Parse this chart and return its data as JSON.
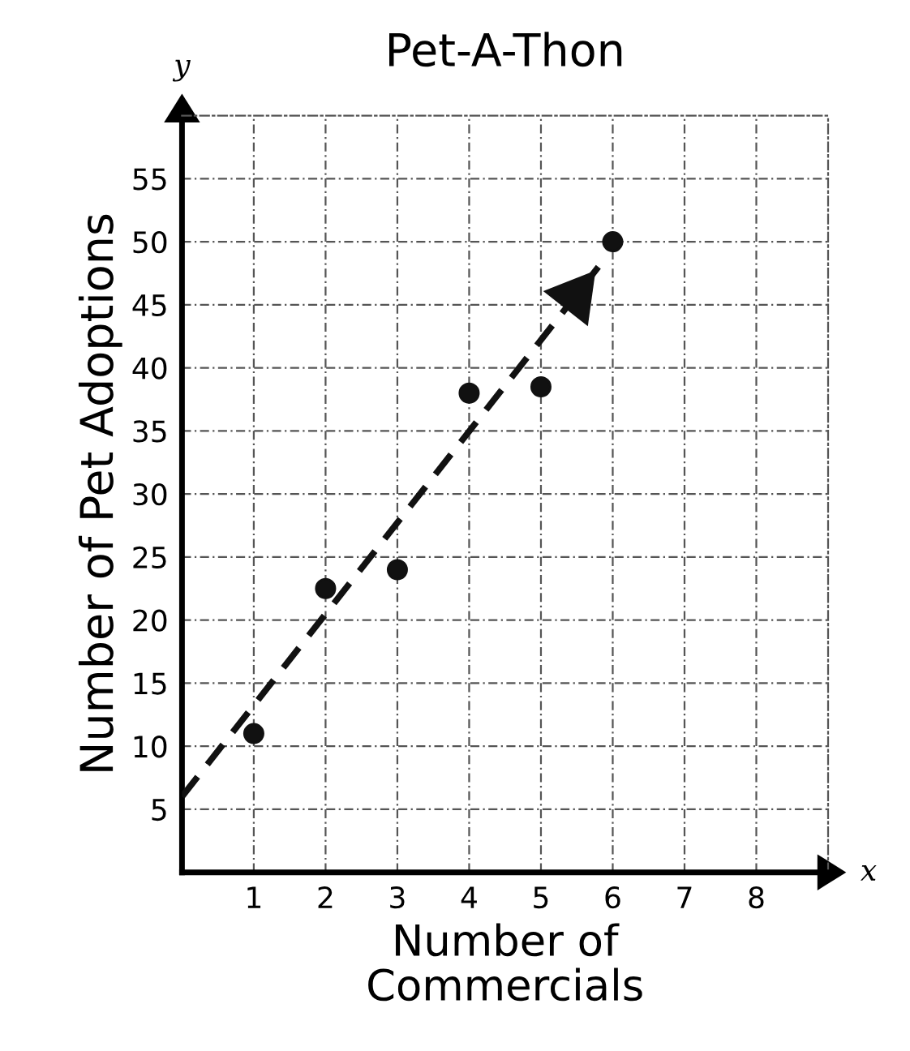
{
  "chart_data": {
    "type": "scatter",
    "title": "Pet-A-Thon",
    "xlabel": "Number of\nCommercials",
    "ylabel": "Number of Pet Adoptions",
    "x": [
      1,
      2,
      3,
      4,
      5,
      6
    ],
    "series": [
      {
        "color": "#111111",
        "values": [
          11,
          22.5,
          24,
          38,
          38.5,
          50
        ],
        "marker": "circle"
      },
      {
        "type": "line",
        "color": "#111111",
        "x": [
          0,
          5.8
        ],
        "values": [
          6,
          48
        ],
        "line_style": "dashed",
        "marker": "none"
      }
    ],
    "xlim": [
      0,
      9
    ],
    "ylim": [
      0,
      60
    ],
    "xticks": [
      1,
      2,
      3,
      4,
      5,
      6,
      7,
      8
    ],
    "yticks": [
      5,
      10,
      15,
      20,
      25,
      30,
      35,
      40,
      45,
      50,
      55
    ],
    "grid": true,
    "annotations": [
      "x",
      "y"
    ]
  }
}
